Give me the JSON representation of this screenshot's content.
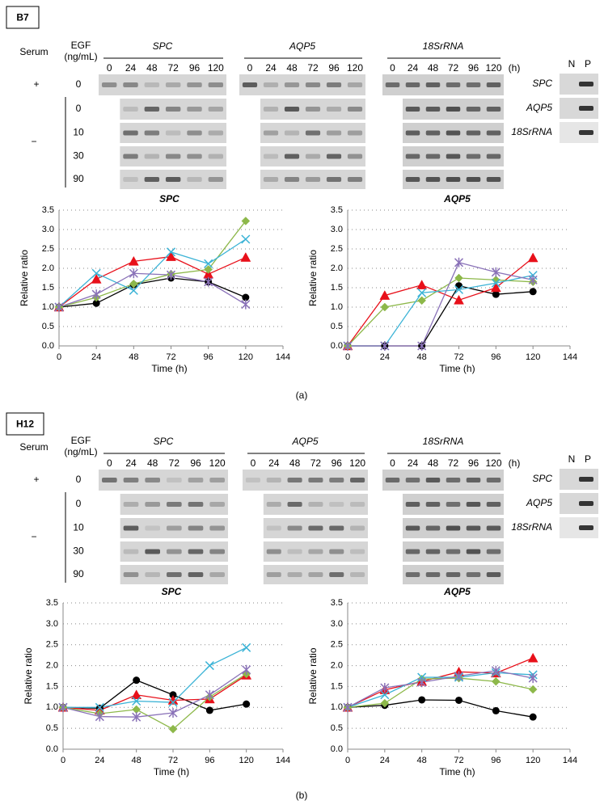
{
  "panels": [
    {
      "label": "B7",
      "caption": "(a)",
      "serum": "Serum",
      "egf": [
        "EGF",
        "(ng/mL)"
      ],
      "genes": [
        "SPC",
        "AQP5",
        "18SrRNA"
      ],
      "timepoints": [
        "0",
        "24",
        "48",
        "72",
        "96",
        "120"
      ],
      "unit": "(h)",
      "plus": "+",
      "minus": "−",
      "plus_dose": "0",
      "doses": [
        "0",
        "10",
        "30",
        "90"
      ],
      "controls": [
        "N",
        "P"
      ]
    },
    {
      "label": "H12",
      "caption": "(b)",
      "serum": "Serum",
      "egf": [
        "EGF",
        "(ng/mL)"
      ],
      "genes": [
        "SPC",
        "AQP5",
        "18SrRNA"
      ],
      "timepoints": [
        "0",
        "24",
        "48",
        "72",
        "96",
        "120"
      ],
      "unit": "(h)",
      "plus": "+",
      "minus": "−",
      "plus_dose": "0",
      "doses": [
        "0",
        "10",
        "30",
        "90"
      ],
      "controls": [
        "N",
        "P"
      ]
    }
  ],
  "chart_data": [
    {
      "type": "line",
      "title": "SPC",
      "xlabel": "Time (h)",
      "ylabel": "Relative ratio",
      "x": [
        0,
        24,
        48,
        72,
        96,
        120
      ],
      "xlim": [
        0,
        144
      ],
      "xticks": [
        0,
        24,
        48,
        72,
        96,
        120,
        144
      ],
      "ylim": [
        0,
        3.5
      ],
      "yticks": [
        {
          "value": 0,
          "label": "0.0"
        },
        0.5,
        {
          "value": 1,
          "label": "1.0"
        },
        1.5,
        {
          "value": 2,
          "label": "2.0"
        },
        2.5,
        {
          "value": 3,
          "label": "3.0"
        },
        3.5
      ],
      "grid": true,
      "series": [
        {
          "color": "#000000",
          "marker": "circle",
          "values": [
            1.0,
            1.1,
            1.58,
            1.75,
            1.65,
            1.25
          ]
        },
        {
          "color": "#e8101a",
          "marker": "triangle",
          "values": [
            1.0,
            1.72,
            2.18,
            2.3,
            1.85,
            2.28
          ]
        },
        {
          "color": "#8db84a",
          "marker": "diamond",
          "values": [
            1.0,
            1.25,
            1.6,
            1.85,
            1.97,
            3.22
          ]
        },
        {
          "color": "#3bb3d6",
          "marker": "x",
          "values": [
            1.0,
            1.87,
            1.43,
            2.42,
            2.12,
            2.75
          ]
        },
        {
          "color": "#8a72b8",
          "marker": "star",
          "values": [
            1.0,
            1.33,
            1.87,
            1.83,
            1.65,
            1.07
          ]
        }
      ]
    },
    {
      "type": "line",
      "title": "AQP5",
      "xlabel": "Time (h)",
      "ylabel": "Relative ratio",
      "x": [
        0,
        24,
        48,
        72,
        96,
        120
      ],
      "xlim": [
        0,
        144
      ],
      "xticks": [
        0,
        24,
        48,
        72,
        96,
        120,
        144
      ],
      "ylim": [
        0,
        3.5
      ],
      "yticks": [
        {
          "value": 0,
          "label": "0.0"
        },
        0.5,
        {
          "value": 1,
          "label": "1.0"
        },
        1.5,
        {
          "value": 2,
          "label": "2.0"
        },
        2.5,
        {
          "value": 3,
          "label": "3.0"
        },
        3.5
      ],
      "grid": true,
      "series": [
        {
          "color": "#000000",
          "marker": "circle",
          "values": [
            0,
            0,
            0,
            1.55,
            1.33,
            1.4
          ]
        },
        {
          "color": "#e8101a",
          "marker": "triangle",
          "values": [
            0,
            1.3,
            1.57,
            1.18,
            1.5,
            2.27
          ]
        },
        {
          "color": "#8db84a",
          "marker": "diamond",
          "values": [
            0,
            1.0,
            1.17,
            1.75,
            1.7,
            1.65
          ]
        },
        {
          "color": "#3bb3d6",
          "marker": "x",
          "values": [
            0,
            0,
            1.37,
            1.45,
            1.62,
            1.82
          ]
        },
        {
          "color": "#8a72b8",
          "marker": "star",
          "values": [
            0,
            0,
            0,
            2.15,
            1.9,
            1.7
          ]
        }
      ]
    },
    {
      "type": "line",
      "title": "SPC",
      "xlabel": "Time (h)",
      "ylabel": "Relative ratio",
      "x": [
        0,
        24,
        48,
        72,
        96,
        120
      ],
      "xlim": [
        0,
        144
      ],
      "xticks": [
        0,
        24,
        48,
        72,
        96,
        120,
        144
      ],
      "ylim": [
        0,
        3.5
      ],
      "yticks": [
        {
          "value": 0,
          "label": "0.0"
        },
        0.5,
        {
          "value": 1,
          "label": "1.0"
        },
        1.5,
        {
          "value": 2,
          "label": "2.0"
        },
        2.5,
        {
          "value": 3,
          "label": "3.0"
        },
        3.5
      ],
      "grid": true,
      "series": [
        {
          "color": "#000000",
          "marker": "circle",
          "values": [
            1.0,
            0.98,
            1.65,
            1.3,
            0.93,
            1.08
          ]
        },
        {
          "color": "#e8101a",
          "marker": "triangle",
          "values": [
            1.0,
            0.93,
            1.3,
            1.17,
            1.2,
            1.77
          ]
        },
        {
          "color": "#8db84a",
          "marker": "diamond",
          "values": [
            1.0,
            0.85,
            0.95,
            0.48,
            1.25,
            1.8
          ]
        },
        {
          "color": "#3bb3d6",
          "marker": "x",
          "values": [
            1.0,
            1.0,
            1.15,
            1.12,
            2.0,
            2.43
          ]
        },
        {
          "color": "#8a72b8",
          "marker": "star",
          "values": [
            1.0,
            0.78,
            0.77,
            0.87,
            1.3,
            1.9
          ]
        }
      ]
    },
    {
      "type": "line",
      "title": "AQP5",
      "xlabel": "Time (h)",
      "ylabel": "Relative ratio",
      "x": [
        0,
        24,
        48,
        72,
        96,
        120
      ],
      "xlim": [
        0,
        144
      ],
      "xticks": [
        0,
        24,
        48,
        72,
        96,
        120,
        144
      ],
      "ylim": [
        0,
        3.5
      ],
      "yticks": [
        {
          "value": 0,
          "label": "0.0"
        },
        0.5,
        {
          "value": 1,
          "label": "1.0"
        },
        1.5,
        {
          "value": 2,
          "label": "2.0"
        },
        2.5,
        {
          "value": 3,
          "label": "3.0"
        },
        3.5
      ],
      "grid": true,
      "series": [
        {
          "color": "#000000",
          "marker": "circle",
          "values": [
            1.0,
            1.05,
            1.18,
            1.17,
            0.92,
            0.77
          ]
        },
        {
          "color": "#e8101a",
          "marker": "triangle",
          "values": [
            1.0,
            1.42,
            1.62,
            1.85,
            1.82,
            2.18
          ]
        },
        {
          "color": "#8db84a",
          "marker": "diamond",
          "values": [
            1.0,
            1.1,
            1.68,
            1.7,
            1.62,
            1.43
          ]
        },
        {
          "color": "#3bb3d6",
          "marker": "x",
          "values": [
            1.0,
            1.3,
            1.72,
            1.72,
            1.83,
            1.78
          ]
        },
        {
          "color": "#8a72b8",
          "marker": "star",
          "values": [
            1.0,
            1.47,
            1.6,
            1.75,
            1.88,
            1.7
          ]
        }
      ]
    }
  ]
}
